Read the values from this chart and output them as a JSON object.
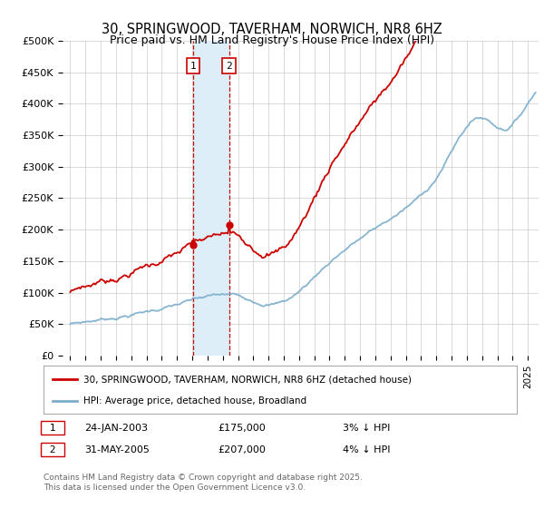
{
  "title": "30, SPRINGWOOD, TAVERHAM, NORWICH, NR8 6HZ",
  "subtitle": "Price paid vs. HM Land Registry's House Price Index (HPI)",
  "ylabel_ticks": [
    "£0",
    "£50K",
    "£100K",
    "£150K",
    "£200K",
    "£250K",
    "£300K",
    "£350K",
    "£400K",
    "£450K",
    "£500K"
  ],
  "ytick_values": [
    0,
    50000,
    100000,
    150000,
    200000,
    250000,
    300000,
    350000,
    400000,
    450000,
    500000
  ],
  "ylim": [
    0,
    500000
  ],
  "xlim_start": 1994.5,
  "xlim_end": 2025.7,
  "sale1_date": 2003.07,
  "sale1_price": 175000,
  "sale2_date": 2005.42,
  "sale2_price": 207000,
  "sale_color": "#cc0000",
  "hpi_color": "#7aadcc",
  "highlight_color": "#ddeef8",
  "grid_color": "#cccccc",
  "legend_line1": "30, SPRINGWOOD, TAVERHAM, NORWICH, NR8 6HZ (detached house)",
  "legend_line2": "HPI: Average price, detached house, Broadland",
  "annotation1_date": "24-JAN-2003",
  "annotation1_price": "£175,000",
  "annotation1_hpi": "3% ↓ HPI",
  "annotation2_date": "31-MAY-2005",
  "annotation2_price": "£207,000",
  "annotation2_hpi": "4% ↓ HPI",
  "footnote_line1": "Contains HM Land Registry data © Crown copyright and database right 2025.",
  "footnote_line2": "This data is licensed under the Open Government Licence v3.0.",
  "bg_color": "#ffffff"
}
